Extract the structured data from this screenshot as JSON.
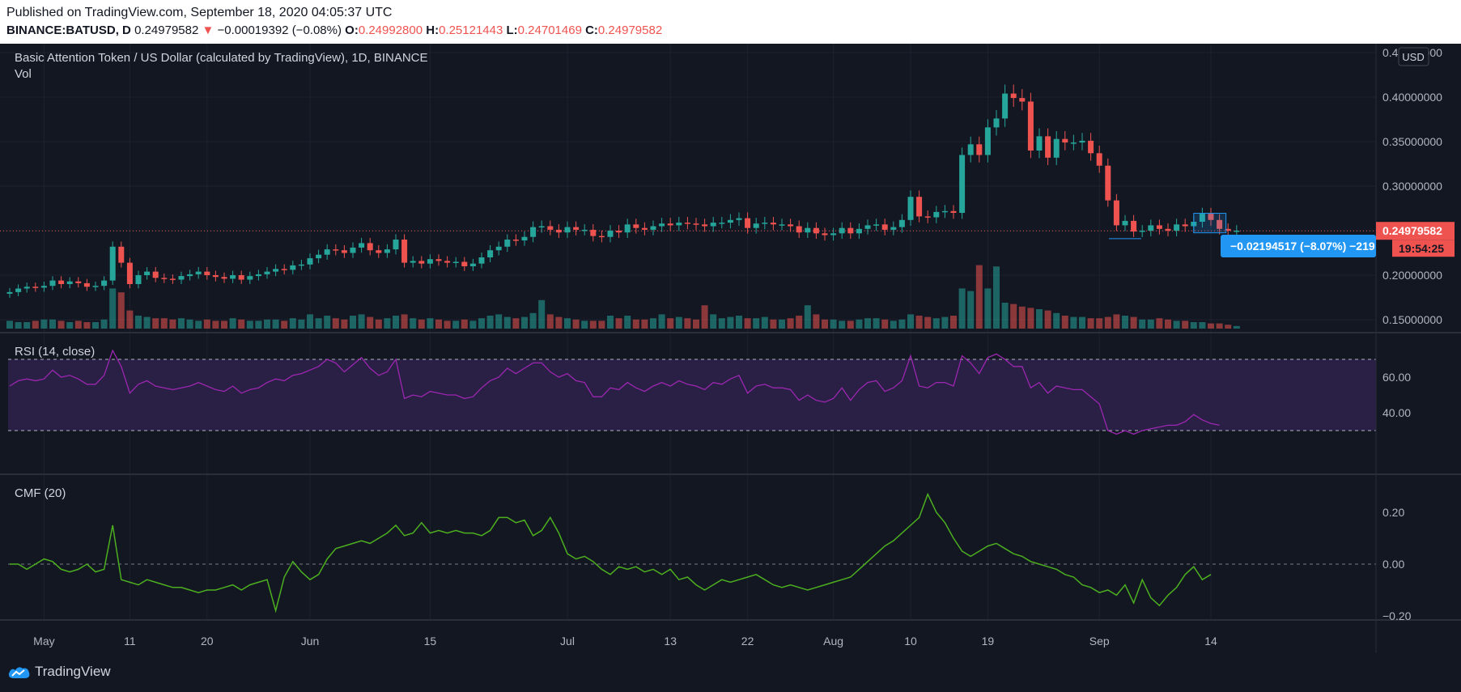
{
  "header": {
    "published": "Published on TradingView.com, September 18, 2020 04:05:37 UTC",
    "symbol": "BINANCE:BATUSD, D",
    "last": "0.24979582",
    "change_arrow": "▼",
    "change": "−0.00019392 (−0.08%)",
    "o_label": "O:",
    "o_value": "0.24992800",
    "h_label": "H:",
    "h_value": "0.25121443",
    "l_label": "L:",
    "l_value": "0.24701469",
    "c_label": "C:",
    "c_value": "0.24979582"
  },
  "main_pane": {
    "title": "Basic Attention Token / US Dollar (calculated by TradingView), 1D, BINANCE",
    "vol_label": "Vol",
    "currency": "USD",
    "price_tag": "0.24979582",
    "countdown_tag": "19:54:25",
    "measure_label": "−0.02194517 (−8.07%) −219"
  },
  "rsi_pane": {
    "title": "RSI (14, close)"
  },
  "cmf_pane": {
    "title": "CMF (20)"
  },
  "footer": {
    "brand": "TradingView",
    "brand_icon": "tradingview-logo-icon"
  },
  "colors": {
    "up": "#26a69a",
    "down": "#ef5350",
    "rsi": "#9c27b0",
    "rsi_band": "#2a1f45",
    "cmf": "#4caf1f",
    "background": "#131722",
    "measure": "#2196f3"
  },
  "chart_data": [
    {
      "type": "candlestick",
      "title": "Basic Attention Token / US Dollar (calculated by TradingView), 1D, BINANCE",
      "x": [
        "2020-04-27",
        "2020-04-28",
        "2020-04-29",
        "2020-04-30",
        "2020-05-01",
        "2020-05-02",
        "2020-05-03",
        "2020-05-04",
        "2020-05-05",
        "2020-05-06",
        "2020-05-07",
        "2020-05-08",
        "2020-05-09",
        "2020-05-10",
        "2020-05-11",
        "2020-05-12",
        "2020-05-13",
        "2020-05-14",
        "2020-05-15",
        "2020-05-16",
        "2020-05-17",
        "2020-05-18",
        "2020-05-19",
        "2020-05-20",
        "2020-05-21",
        "2020-05-22",
        "2020-05-23",
        "2020-05-24",
        "2020-05-25",
        "2020-05-26",
        "2020-05-27",
        "2020-05-28",
        "2020-05-29",
        "2020-05-30",
        "2020-05-31",
        "2020-06-01",
        "2020-06-02",
        "2020-06-03",
        "2020-06-04",
        "2020-06-05",
        "2020-06-06",
        "2020-06-07",
        "2020-06-08",
        "2020-06-09",
        "2020-06-10",
        "2020-06-11",
        "2020-06-12",
        "2020-06-13",
        "2020-06-14",
        "2020-06-15",
        "2020-06-16",
        "2020-06-17",
        "2020-06-18",
        "2020-06-19",
        "2020-06-20",
        "2020-06-21",
        "2020-06-22",
        "2020-06-23",
        "2020-06-24",
        "2020-06-25",
        "2020-06-26",
        "2020-06-27",
        "2020-06-28",
        "2020-06-29",
        "2020-06-30",
        "2020-07-01",
        "2020-07-02",
        "2020-07-03",
        "2020-07-04",
        "2020-07-05",
        "2020-07-06",
        "2020-07-07",
        "2020-07-08",
        "2020-07-09",
        "2020-07-10",
        "2020-07-11",
        "2020-07-12",
        "2020-07-13",
        "2020-07-14",
        "2020-07-15",
        "2020-07-16",
        "2020-07-17",
        "2020-07-18",
        "2020-07-19",
        "2020-07-20",
        "2020-07-21",
        "2020-07-22",
        "2020-07-23",
        "2020-07-24",
        "2020-07-25",
        "2020-07-26",
        "2020-07-27",
        "2020-07-28",
        "2020-07-29",
        "2020-07-30",
        "2020-07-31",
        "2020-08-01",
        "2020-08-02",
        "2020-08-03",
        "2020-08-04",
        "2020-08-05",
        "2020-08-06",
        "2020-08-07",
        "2020-08-08",
        "2020-08-09",
        "2020-08-10",
        "2020-08-11",
        "2020-08-12",
        "2020-08-13",
        "2020-08-14",
        "2020-08-15",
        "2020-08-16",
        "2020-08-17",
        "2020-08-18",
        "2020-08-19",
        "2020-08-20",
        "2020-08-21",
        "2020-08-22",
        "2020-08-23",
        "2020-08-24",
        "2020-08-25",
        "2020-08-26",
        "2020-08-27",
        "2020-08-28",
        "2020-08-29",
        "2020-08-30",
        "2020-08-31",
        "2020-09-01",
        "2020-09-02",
        "2020-09-03",
        "2020-09-04",
        "2020-09-05",
        "2020-09-06",
        "2020-09-07",
        "2020-09-08",
        "2020-09-09",
        "2020-09-10",
        "2020-09-11",
        "2020-09-12",
        "2020-09-13",
        "2020-09-14",
        "2020-09-15",
        "2020-09-16",
        "2020-09-17"
      ],
      "close": [
        0.181,
        0.185,
        0.187,
        0.186,
        0.188,
        0.194,
        0.19,
        0.193,
        0.191,
        0.187,
        0.188,
        0.194,
        0.232,
        0.214,
        0.19,
        0.2,
        0.204,
        0.197,
        0.196,
        0.195,
        0.199,
        0.201,
        0.204,
        0.2,
        0.198,
        0.196,
        0.2,
        0.195,
        0.199,
        0.201,
        0.204,
        0.207,
        0.206,
        0.211,
        0.212,
        0.219,
        0.223,
        0.229,
        0.228,
        0.225,
        0.231,
        0.236,
        0.228,
        0.225,
        0.229,
        0.24,
        0.214,
        0.216,
        0.213,
        0.218,
        0.216,
        0.214,
        0.215,
        0.21,
        0.213,
        0.22,
        0.228,
        0.232,
        0.24,
        0.239,
        0.243,
        0.254,
        0.255,
        0.251,
        0.248,
        0.254,
        0.251,
        0.251,
        0.244,
        0.243,
        0.25,
        0.248,
        0.257,
        0.253,
        0.251,
        0.255,
        0.258,
        0.256,
        0.259,
        0.258,
        0.257,
        0.255,
        0.259,
        0.259,
        0.262,
        0.264,
        0.253,
        0.258,
        0.259,
        0.257,
        0.257,
        0.255,
        0.248,
        0.253,
        0.247,
        0.245,
        0.247,
        0.253,
        0.247,
        0.252,
        0.256,
        0.257,
        0.251,
        0.254,
        0.262,
        0.288,
        0.266,
        0.265,
        0.271,
        0.272,
        0.27,
        0.335,
        0.347,
        0.335,
        0.366,
        0.376,
        0.404,
        0.399,
        0.395,
        0.34,
        0.356,
        0.332,
        0.353,
        0.349,
        0.349,
        0.351,
        0.337,
        0.323,
        0.284,
        0.256,
        0.261,
        0.249,
        0.25,
        0.256,
        0.252,
        0.25,
        0.257,
        0.255,
        0.26,
        0.269,
        0.262,
        0.252,
        0.25,
        0.25
      ],
      "ylim": [
        0.14,
        0.46
      ],
      "y_ticks": [
        0.15,
        0.2,
        0.25,
        0.3,
        0.35,
        0.4,
        0.45
      ],
      "y_tick_labels": [
        "0.15000000",
        "0.20000000",
        "",
        "0.30000000",
        "0.35000000",
        "0.40000000",
        "0.45000000"
      ],
      "x_tick_labels": [
        {
          "date": "2020-05-01",
          "label": "May"
        },
        {
          "date": "2020-05-11",
          "label": "11"
        },
        {
          "date": "2020-05-20",
          "label": "20"
        },
        {
          "date": "2020-06-01",
          "label": "Jun"
        },
        {
          "date": "2020-06-15",
          "label": "15"
        },
        {
          "date": "2020-07-01",
          "label": "Jul"
        },
        {
          "date": "2020-07-13",
          "label": "13"
        },
        {
          "date": "2020-07-22",
          "label": "22"
        },
        {
          "date": "2020-08-01",
          "label": "Aug"
        },
        {
          "date": "2020-08-10",
          "label": "10"
        },
        {
          "date": "2020-08-19",
          "label": "19"
        },
        {
          "date": "2020-09-01",
          "label": "Sep"
        },
        {
          "date": "2020-09-14",
          "label": "14"
        }
      ],
      "volume_levels": [
        0.12,
        0.1,
        0.1,
        0.12,
        0.14,
        0.14,
        0.12,
        0.1,
        0.12,
        0.1,
        0.1,
        0.14,
        0.62,
        0.56,
        0.28,
        0.2,
        0.18,
        0.16,
        0.16,
        0.14,
        0.16,
        0.14,
        0.12,
        0.14,
        0.12,
        0.12,
        0.16,
        0.14,
        0.12,
        0.12,
        0.14,
        0.14,
        0.12,
        0.16,
        0.14,
        0.22,
        0.16,
        0.2,
        0.16,
        0.14,
        0.2,
        0.22,
        0.18,
        0.14,
        0.16,
        0.2,
        0.22,
        0.16,
        0.14,
        0.16,
        0.14,
        0.12,
        0.12,
        0.14,
        0.12,
        0.16,
        0.2,
        0.22,
        0.18,
        0.16,
        0.18,
        0.24,
        0.44,
        0.22,
        0.18,
        0.16,
        0.14,
        0.12,
        0.12,
        0.12,
        0.2,
        0.16,
        0.2,
        0.14,
        0.14,
        0.16,
        0.22,
        0.16,
        0.18,
        0.16,
        0.14,
        0.36,
        0.22,
        0.16,
        0.18,
        0.2,
        0.16,
        0.16,
        0.18,
        0.14,
        0.14,
        0.16,
        0.2,
        0.36,
        0.22,
        0.14,
        0.14,
        0.12,
        0.12,
        0.14,
        0.16,
        0.16,
        0.14,
        0.12,
        0.14,
        0.22,
        0.2,
        0.18,
        0.16,
        0.18,
        0.2,
        0.62,
        0.58,
        0.98,
        0.62,
        0.96,
        0.4,
        0.38,
        0.34,
        0.32,
        0.3,
        0.28,
        0.24,
        0.2,
        0.18,
        0.18,
        0.16,
        0.16,
        0.18,
        0.22,
        0.2,
        0.18,
        0.14,
        0.14,
        0.16,
        0.14,
        0.12,
        0.12,
        0.1,
        0.1,
        0.08,
        0.08,
        0.06,
        0.04
      ],
      "last_price": 0.24979582
    },
    {
      "type": "line",
      "title": "RSI (14, close)",
      "x": "same dates as candlestick series",
      "y": [
        55,
        58,
        59,
        58,
        59,
        64,
        60,
        61,
        59,
        56,
        56,
        61,
        75,
        66,
        51,
        56,
        58,
        55,
        54,
        53,
        54,
        55,
        57,
        55,
        53,
        52,
        55,
        51,
        53,
        54,
        57,
        59,
        58,
        61,
        62,
        64,
        66,
        70,
        68,
        63,
        67,
        71,
        65,
        61,
        63,
        70,
        48,
        50,
        49,
        52,
        51,
        50,
        50,
        48,
        49,
        54,
        58,
        60,
        65,
        62,
        65,
        68,
        68,
        63,
        60,
        62,
        58,
        57,
        49,
        49,
        54,
        53,
        57,
        54,
        52,
        55,
        57,
        55,
        58,
        56,
        55,
        53,
        57,
        56,
        59,
        61,
        51,
        55,
        56,
        54,
        54,
        53,
        47,
        50,
        47,
        46,
        48,
        54,
        47,
        53,
        57,
        58,
        52,
        54,
        58,
        72,
        55,
        54,
        57,
        57,
        55,
        72,
        68,
        62,
        71,
        73,
        70,
        66,
        66,
        54,
        57,
        51,
        55,
        54,
        53,
        53,
        49,
        45,
        30,
        28,
        30,
        28,
        30,
        31,
        32,
        33,
        33,
        35,
        39,
        36,
        34,
        33
      ]
    },
    {
      "type": "line",
      "title": "CMF (20)",
      "x": "same dates as candlestick series",
      "y": [
        0.0,
        0.0,
        -0.02,
        0.0,
        0.02,
        0.01,
        -0.02,
        -0.03,
        -0.02,
        0.0,
        -0.03,
        -0.02,
        0.15,
        -0.06,
        -0.07,
        -0.08,
        -0.06,
        -0.07,
        -0.08,
        -0.09,
        -0.09,
        -0.1,
        -0.11,
        -0.1,
        -0.1,
        -0.09,
        -0.08,
        -0.1,
        -0.08,
        -0.07,
        -0.06,
        -0.18,
        -0.05,
        0.01,
        -0.03,
        -0.06,
        -0.04,
        0.02,
        0.06,
        0.07,
        0.08,
        0.09,
        0.08,
        0.1,
        0.12,
        0.15,
        0.11,
        0.12,
        0.16,
        0.12,
        0.13,
        0.12,
        0.13,
        0.12,
        0.12,
        0.11,
        0.13,
        0.18,
        0.18,
        0.16,
        0.17,
        0.11,
        0.13,
        0.18,
        0.12,
        0.04,
        0.02,
        0.03,
        0.01,
        -0.02,
        -0.04,
        -0.01,
        -0.02,
        -0.01,
        -0.03,
        -0.02,
        -0.04,
        -0.02,
        -0.06,
        -0.05,
        -0.08,
        -0.1,
        -0.08,
        -0.06,
        -0.07,
        -0.06,
        -0.05,
        -0.04,
        -0.06,
        -0.08,
        -0.09,
        -0.08,
        -0.09,
        -0.1,
        -0.09,
        -0.08,
        -0.07,
        -0.06,
        -0.05,
        -0.02,
        0.01,
        0.04,
        0.07,
        0.09,
        0.12,
        0.15,
        0.18,
        0.27,
        0.2,
        0.16,
        0.1,
        0.05,
        0.03,
        0.05,
        0.07,
        0.08,
        0.06,
        0.04,
        0.03,
        0.01,
        0.0,
        -0.01,
        -0.02,
        -0.04,
        -0.05,
        -0.08,
        -0.09,
        -0.11,
        -0.1,
        -0.12,
        -0.08,
        -0.15,
        -0.06,
        -0.13,
        -0.16,
        -0.12,
        -0.09,
        -0.04,
        -0.01,
        -0.06,
        -0.04
      ]
    }
  ]
}
